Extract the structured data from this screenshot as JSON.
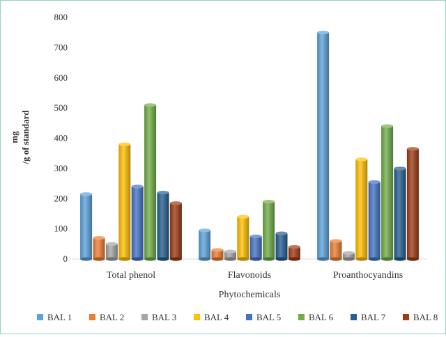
{
  "chart_data": {
    "type": "bar",
    "style": "3d-cylinder",
    "xlabel": "Phytochemicals",
    "ylabel_line1": "mg",
    "ylabel_line2": "/g of standard",
    "ylim": [
      0,
      800
    ],
    "yticks": [
      "0",
      "100",
      "200",
      "300",
      "400",
      "500",
      "600",
      "700",
      "800"
    ],
    "grid": false,
    "legend_position": "bottom",
    "categories": [
      "Total phenol",
      "Flavonoids",
      "Proanthocyandins"
    ],
    "series": [
      {
        "name": "BAL 1",
        "color": "#5ba3dc",
        "values": [
          215,
          95,
          750
        ]
      },
      {
        "name": "BAL 2",
        "color": "#ed7d31",
        "values": [
          70,
          30,
          60
        ]
      },
      {
        "name": "BAL 3",
        "color": "#a5a5a5",
        "values": [
          50,
          25,
          20
        ]
      },
      {
        "name": "BAL 4",
        "color": "#ffc000",
        "values": [
          380,
          140,
          330
        ]
      },
      {
        "name": "BAL 5",
        "color": "#4472c4",
        "values": [
          240,
          75,
          255
        ]
      },
      {
        "name": "BAL 6",
        "color": "#70ad47",
        "values": [
          510,
          190,
          440
        ]
      },
      {
        "name": "BAL 7",
        "color": "#255e91",
        "values": [
          220,
          85,
          300
        ]
      },
      {
        "name": "BAL 8",
        "color": "#9e3b12",
        "values": [
          185,
          40,
          365
        ]
      }
    ]
  }
}
